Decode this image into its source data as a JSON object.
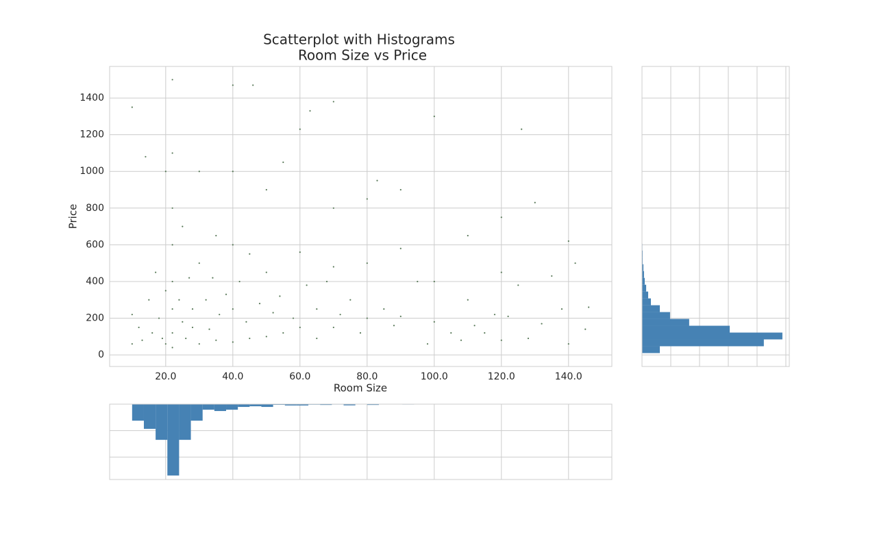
{
  "chart_data": [
    {
      "type": "scatter",
      "title": "Scatterplot with Histograms",
      "subtitle": "Room Size vs Price",
      "x_label": "Room Size",
      "y_label": "Price",
      "color": "#5a7a5a",
      "grid": true,
      "tick_labels": true,
      "xlim": [
        3.3,
        152.9
      ],
      "ylim": [
        -63,
        1572
      ],
      "xticks": [
        {
          "value": 20,
          "label": "20.0"
        },
        {
          "value": 40,
          "label": "40.0"
        },
        {
          "value": 60,
          "label": "60.0"
        },
        {
          "value": 80,
          "label": "80.0"
        },
        {
          "value": 100,
          "label": "100.0"
        },
        {
          "value": 120,
          "label": "120.0"
        },
        {
          "value": 140,
          "label": "140.0"
        }
      ],
      "yticks": [
        0,
        200,
        400,
        600,
        800,
        1000,
        1200,
        1400
      ],
      "x": [
        10,
        10,
        10,
        12,
        13,
        14,
        15,
        16,
        17,
        18,
        19,
        20,
        20,
        20,
        22,
        22,
        22,
        22,
        22,
        22,
        22,
        22,
        24,
        25,
        25,
        26,
        27,
        28,
        28,
        30,
        30,
        30,
        32,
        33,
        34,
        35,
        35,
        36,
        38,
        40,
        40,
        40,
        40,
        40,
        42,
        44,
        45,
        45,
        46,
        48,
        50,
        50,
        50,
        52,
        54,
        55,
        55,
        58,
        60,
        60,
        60,
        62,
        63,
        65,
        65,
        68,
        70,
        70,
        70,
        70,
        72,
        75,
        78,
        80,
        80,
        80,
        83,
        85,
        88,
        90,
        90,
        90,
        95,
        98,
        100,
        100,
        100,
        105,
        108,
        110,
        110,
        112,
        115,
        118,
        120,
        120,
        120,
        122,
        125,
        126,
        128,
        130,
        132,
        135,
        138,
        140,
        140,
        142,
        145,
        146
      ],
      "values": [
        1350,
        60,
        220,
        150,
        80,
        1080,
        300,
        120,
        450,
        200,
        90,
        350,
        60,
        1000,
        1500,
        1100,
        800,
        600,
        400,
        250,
        120,
        40,
        300,
        180,
        700,
        90,
        420,
        150,
        250,
        60,
        500,
        1000,
        300,
        140,
        420,
        80,
        650,
        220,
        330,
        1470,
        1000,
        600,
        250,
        70,
        400,
        180,
        550,
        90,
        1470,
        280,
        100,
        450,
        900,
        230,
        320,
        120,
        1050,
        200,
        1230,
        560,
        150,
        380,
        1330,
        90,
        250,
        400,
        1380,
        800,
        480,
        150,
        220,
        300,
        120,
        850,
        500,
        200,
        950,
        250,
        160,
        900,
        580,
        210,
        400,
        60,
        1300,
        400,
        180,
        120,
        80,
        650,
        300,
        160,
        120,
        220,
        750,
        450,
        80,
        210,
        380,
        1230,
        90,
        830,
        170,
        430,
        250,
        620,
        60,
        500,
        140,
        260
      ]
    },
    {
      "type": "histogram",
      "orientation": "vertical",
      "invert_y": true,
      "color": "#4682b4",
      "grid": true,
      "tick_labels": false,
      "xlim": [
        3.3,
        152.9
      ],
      "ylim": [
        0,
        5700
      ],
      "xticks": [
        20,
        40,
        60,
        80,
        100,
        120,
        140
      ],
      "yticks": [
        0,
        2000,
        4000
      ],
      "bins": [
        10,
        13.5,
        17,
        20.5,
        24,
        27.5,
        31,
        34.5,
        38,
        41.5,
        45,
        48.5,
        52,
        55.5,
        59,
        62.5,
        66,
        69.5,
        73,
        76.5,
        80,
        83.5,
        87,
        90.5,
        94,
        97.5,
        101,
        104.5,
        108,
        111.5,
        115,
        118.5,
        122,
        125.5,
        129,
        132.5,
        136,
        139.5,
        143,
        146.5,
        150
      ],
      "counts": [
        1250,
        1870,
        2700,
        5400,
        2700,
        1250,
        420,
        520,
        420,
        210,
        160,
        210,
        50,
        100,
        100,
        40,
        60,
        30,
        90,
        20,
        60,
        15,
        20,
        30,
        10,
        15,
        25,
        8,
        5,
        20,
        6,
        4,
        12,
        8,
        6,
        5,
        4,
        10,
        5,
        3
      ]
    },
    {
      "type": "histogram",
      "orientation": "horizontal",
      "color": "#4682b4",
      "grid": true,
      "tick_labels": false,
      "xlim": [
        0,
        10240
      ],
      "ylim": [
        -63,
        1572
      ],
      "xticks": [
        0,
        2000,
        4000,
        6000,
        8000,
        10000
      ],
      "yticks": [
        0,
        200,
        400,
        600,
        800,
        1000,
        1200,
        1400
      ],
      "bins": [
        10,
        47.25,
        84.5,
        121.75,
        159,
        196.25,
        233.5,
        270.75,
        308,
        345.25,
        382.5,
        419.75,
        457,
        494.25,
        531.5,
        568.75,
        606,
        643.25,
        680.5,
        717.75,
        755,
        792.25,
        829.5,
        866.75,
        904,
        941.25,
        978.5,
        1015.75,
        1053,
        1090.25,
        1127.5,
        1164.75,
        1202,
        1239.25,
        1276.5,
        1313.75,
        1351,
        1388.25,
        1425.5,
        1462.75,
        1500
      ],
      "counts": [
        1240,
        8470,
        9760,
        6100,
        3280,
        1950,
        1240,
        620,
        430,
        290,
        190,
        140,
        100,
        50,
        50,
        30,
        20,
        15,
        12,
        10,
        8,
        6,
        5,
        5,
        4,
        4,
        3,
        3,
        2,
        2,
        2,
        2,
        1,
        1,
        1,
        1,
        1,
        1,
        1,
        1
      ]
    }
  ]
}
